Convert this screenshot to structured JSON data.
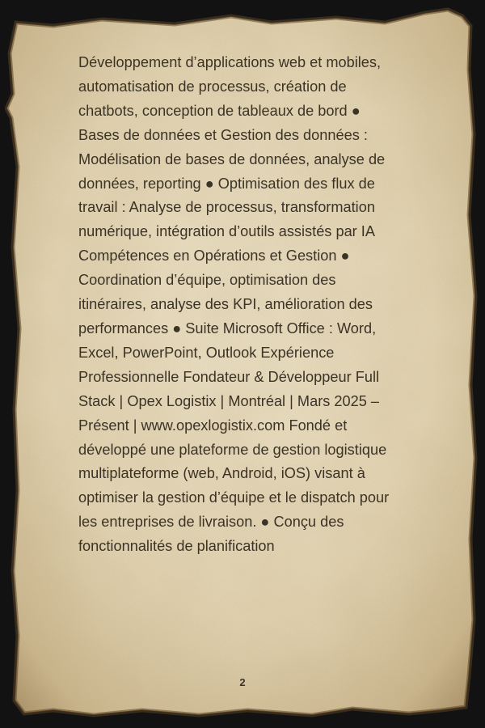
{
  "document": {
    "body": "Développement d’applications web et mobiles, automatisation de processus, création de chatbots, conception de tableaux de bord ● Bases de données et Gestion des données : Modélisation de bases de données, analyse de données, reporting ● Optimisation des flux de travail : Analyse de processus, transformation numérique, intégration d’outils assistés par IA Compétences en Opérations et Gestion ● Coordination d’équipe, optimisation des itinéraires, analyse des KPI, amélioration des performances ● Suite Microsoft Office : Word, Excel, PowerPoint, Outlook Expérience Professionnelle Fondateur & Développeur Full Stack | Opex Logistix | Montréal | Mars 2025 – Présent | www.opexlogistix.com Fondé et développé une plateforme de gestion logistique multiplateforme (web, Android, iOS) visant à optimiser la gestion d’équipe et le dispatch pour les entreprises de livraison. ● Conçu des fonctionnalités de planification",
    "page_number": "2"
  },
  "colors": {
    "parchment_light": "#efe4c8",
    "parchment_dark": "#c9b48a",
    "edge_burn": "#5a4326",
    "text": "#3b3326",
    "background": "#121212"
  }
}
